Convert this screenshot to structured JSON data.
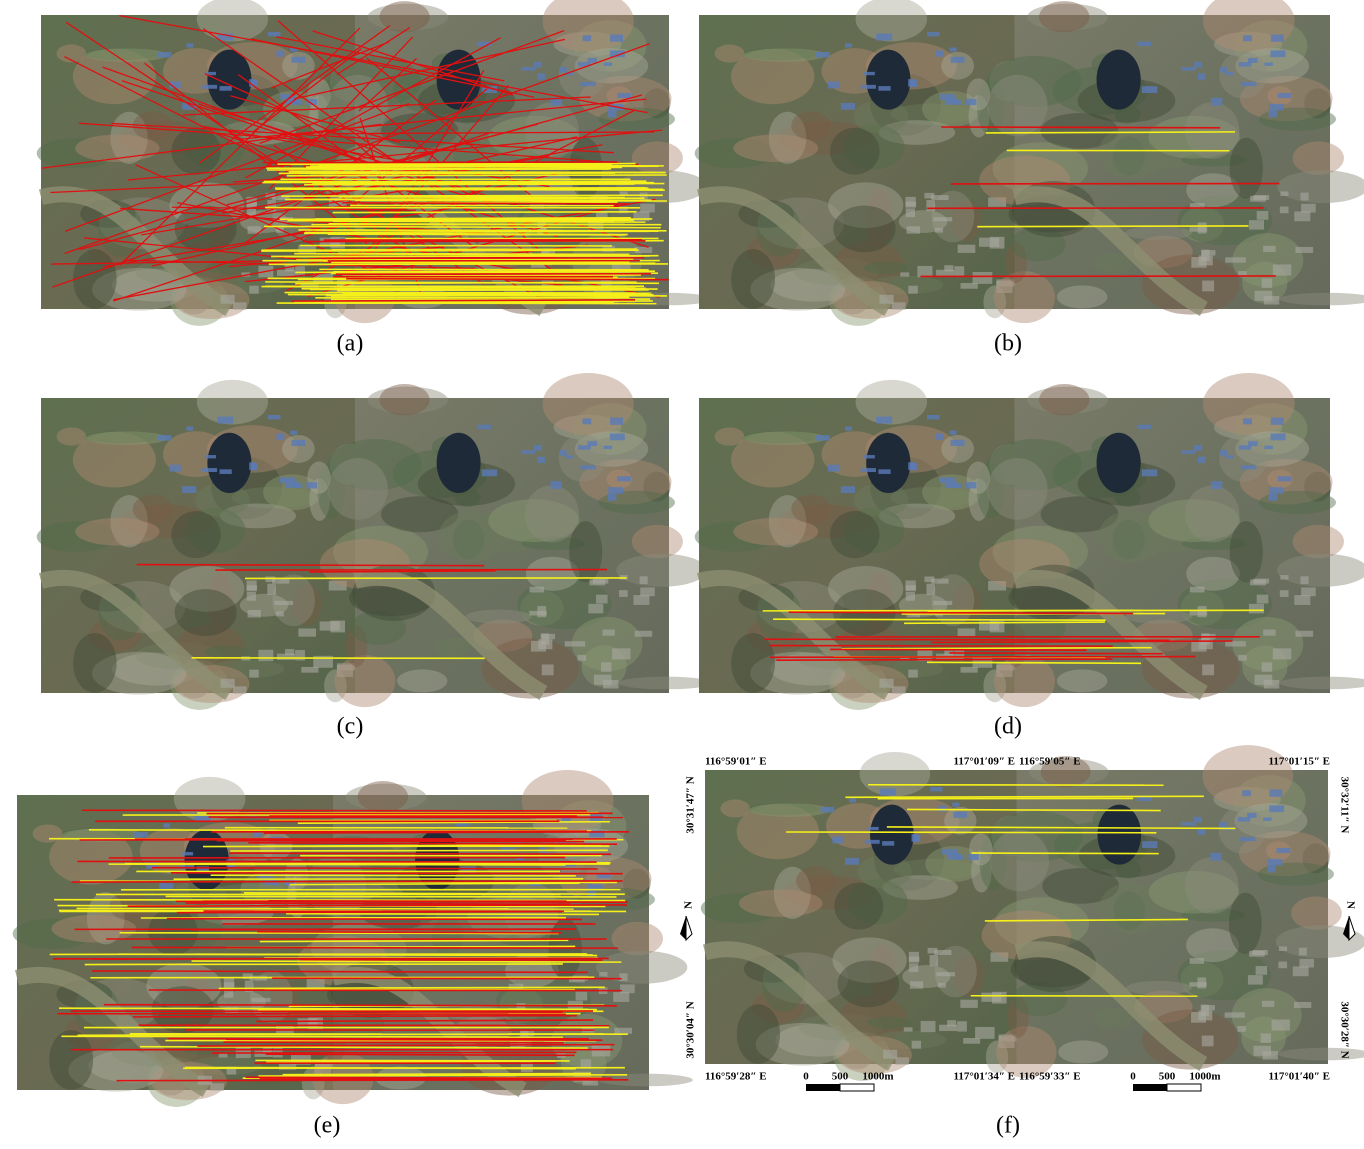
{
  "panels": [
    {
      "label": "(a)"
    },
    {
      "label": "(b)"
    },
    {
      "label": "(c)"
    },
    {
      "label": "(d)"
    },
    {
      "label": "(e)"
    },
    {
      "label": "(f)"
    }
  ],
  "panel_f": {
    "top_labels": [
      "116°59′01″ E",
      "117°01′09″ E",
      "116°59′05″ E",
      "117°01′15″ E"
    ],
    "bottom_labels": [
      "116°59′28″ E",
      "117°01′34″ E",
      "116°59′33″ E",
      "117°01′40″ E"
    ],
    "left_labels": [
      "30°31′47″ N",
      "30°30′04″ N"
    ],
    "right_labels": [
      "30°32′11″ N",
      "30°30′28″ N"
    ],
    "north_label": "N",
    "scale_bar": [
      "0",
      "500",
      "1000m"
    ]
  }
}
